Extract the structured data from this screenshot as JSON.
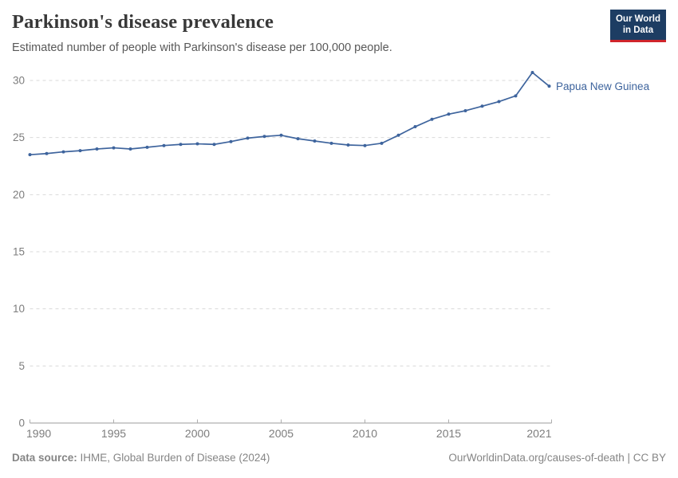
{
  "header": {
    "title": "Parkinson's disease prevalence",
    "subtitle": "Estimated number of people with Parkinson's disease per 100,000 people.",
    "logo": {
      "line1": "Our World",
      "line2": "in Data",
      "bg_color": "#1d3d63",
      "stripe_color": "#d0252b"
    }
  },
  "chart_data": {
    "type": "line",
    "title": "Parkinson's disease prevalence",
    "xlabel": "",
    "ylabel": "",
    "xlim": [
      1990,
      2021
    ],
    "ylim": [
      0,
      30
    ],
    "yticks": [
      0,
      5,
      10,
      15,
      20,
      25,
      30
    ],
    "xticks": [
      1990,
      1995,
      2000,
      2005,
      2010,
      2015,
      2021
    ],
    "grid": "horizontal-dashed",
    "legend_position": "end-of-line-label",
    "colors": {
      "grid": "#dadada",
      "tick_label": "#7d7d7d",
      "axis": "#9c9c9c",
      "tick_mark": "#adadad"
    },
    "series": [
      {
        "name": "Papua New Guinea",
        "color": "#3e649d",
        "x": [
          1990,
          1991,
          1992,
          1993,
          1994,
          1995,
          1996,
          1997,
          1998,
          1999,
          2000,
          2001,
          2002,
          2003,
          2004,
          2005,
          2006,
          2007,
          2008,
          2009,
          2010,
          2011,
          2012,
          2013,
          2014,
          2015,
          2016,
          2017,
          2018,
          2019,
          2020,
          2021
        ],
        "values": [
          23.5,
          23.6,
          23.75,
          23.85,
          24.0,
          24.1,
          24.0,
          24.15,
          24.3,
          24.4,
          24.45,
          24.4,
          24.65,
          24.95,
          25.1,
          25.2,
          24.9,
          24.7,
          24.5,
          24.35,
          24.3,
          24.5,
          25.2,
          25.95,
          26.6,
          27.05,
          27.35,
          27.75,
          28.15,
          28.65,
          30.7,
          29.5
        ]
      }
    ]
  },
  "footer": {
    "source_label": "Data source:",
    "source_text": " IHME, Global Burden of Disease (2024)",
    "credit": "OurWorldinData.org/causes-of-death | CC BY"
  }
}
